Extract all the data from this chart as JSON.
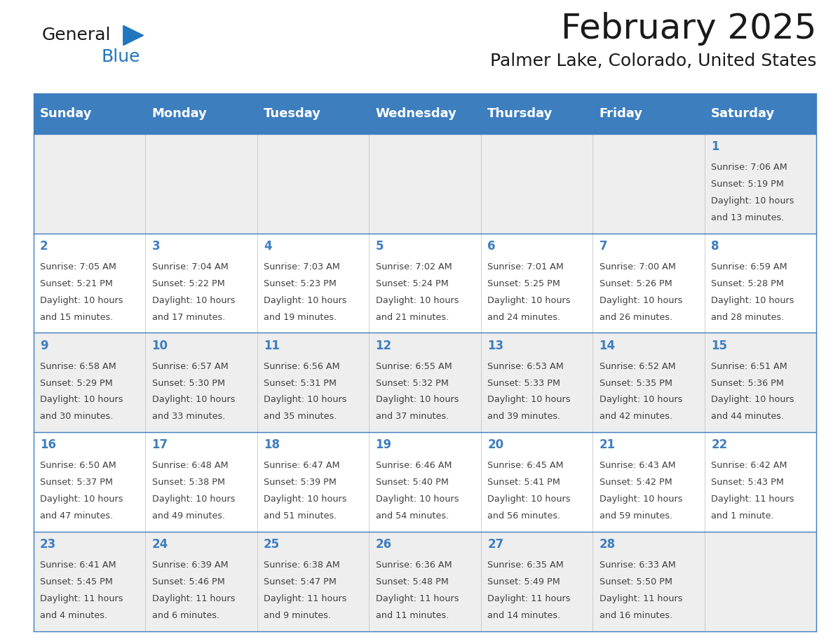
{
  "title": "February 2025",
  "subtitle": "Palmer Lake, Colorado, United States",
  "days_of_week": [
    "Sunday",
    "Monday",
    "Tuesday",
    "Wednesday",
    "Thursday",
    "Friday",
    "Saturday"
  ],
  "header_bg": "#3d7ebf",
  "header_text": "#ffffff",
  "row1_bg": "#eeeeee",
  "row2_bg": "#ffffff",
  "border_color": "#3d7ebf",
  "day_num_color": "#3d7ebf",
  "text_color": "#404040",
  "title_color": "#1a1a1a",
  "calendar_data": [
    [
      null,
      null,
      null,
      null,
      null,
      null,
      {
        "day": 1,
        "sunrise": "7:06 AM",
        "sunset": "5:19 PM",
        "daylight": "10 hours and 13 minutes."
      }
    ],
    [
      {
        "day": 2,
        "sunrise": "7:05 AM",
        "sunset": "5:21 PM",
        "daylight": "10 hours and 15 minutes."
      },
      {
        "day": 3,
        "sunrise": "7:04 AM",
        "sunset": "5:22 PM",
        "daylight": "10 hours and 17 minutes."
      },
      {
        "day": 4,
        "sunrise": "7:03 AM",
        "sunset": "5:23 PM",
        "daylight": "10 hours and 19 minutes."
      },
      {
        "day": 5,
        "sunrise": "7:02 AM",
        "sunset": "5:24 PM",
        "daylight": "10 hours and 21 minutes."
      },
      {
        "day": 6,
        "sunrise": "7:01 AM",
        "sunset": "5:25 PM",
        "daylight": "10 hours and 24 minutes."
      },
      {
        "day": 7,
        "sunrise": "7:00 AM",
        "sunset": "5:26 PM",
        "daylight": "10 hours and 26 minutes."
      },
      {
        "day": 8,
        "sunrise": "6:59 AM",
        "sunset": "5:28 PM",
        "daylight": "10 hours and 28 minutes."
      }
    ],
    [
      {
        "day": 9,
        "sunrise": "6:58 AM",
        "sunset": "5:29 PM",
        "daylight": "10 hours and 30 minutes."
      },
      {
        "day": 10,
        "sunrise": "6:57 AM",
        "sunset": "5:30 PM",
        "daylight": "10 hours and 33 minutes."
      },
      {
        "day": 11,
        "sunrise": "6:56 AM",
        "sunset": "5:31 PM",
        "daylight": "10 hours and 35 minutes."
      },
      {
        "day": 12,
        "sunrise": "6:55 AM",
        "sunset": "5:32 PM",
        "daylight": "10 hours and 37 minutes."
      },
      {
        "day": 13,
        "sunrise": "6:53 AM",
        "sunset": "5:33 PM",
        "daylight": "10 hours and 39 minutes."
      },
      {
        "day": 14,
        "sunrise": "6:52 AM",
        "sunset": "5:35 PM",
        "daylight": "10 hours and 42 minutes."
      },
      {
        "day": 15,
        "sunrise": "6:51 AM",
        "sunset": "5:36 PM",
        "daylight": "10 hours and 44 minutes."
      }
    ],
    [
      {
        "day": 16,
        "sunrise": "6:50 AM",
        "sunset": "5:37 PM",
        "daylight": "10 hours and 47 minutes."
      },
      {
        "day": 17,
        "sunrise": "6:48 AM",
        "sunset": "5:38 PM",
        "daylight": "10 hours and 49 minutes."
      },
      {
        "day": 18,
        "sunrise": "6:47 AM",
        "sunset": "5:39 PM",
        "daylight": "10 hours and 51 minutes."
      },
      {
        "day": 19,
        "sunrise": "6:46 AM",
        "sunset": "5:40 PM",
        "daylight": "10 hours and 54 minutes."
      },
      {
        "day": 20,
        "sunrise": "6:45 AM",
        "sunset": "5:41 PM",
        "daylight": "10 hours and 56 minutes."
      },
      {
        "day": 21,
        "sunrise": "6:43 AM",
        "sunset": "5:42 PM",
        "daylight": "10 hours and 59 minutes."
      },
      {
        "day": 22,
        "sunrise": "6:42 AM",
        "sunset": "5:43 PM",
        "daylight": "11 hours and 1 minute."
      }
    ],
    [
      {
        "day": 23,
        "sunrise": "6:41 AM",
        "sunset": "5:45 PM",
        "daylight": "11 hours and 4 minutes."
      },
      {
        "day": 24,
        "sunrise": "6:39 AM",
        "sunset": "5:46 PM",
        "daylight": "11 hours and 6 minutes."
      },
      {
        "day": 25,
        "sunrise": "6:38 AM",
        "sunset": "5:47 PM",
        "daylight": "11 hours and 9 minutes."
      },
      {
        "day": 26,
        "sunrise": "6:36 AM",
        "sunset": "5:48 PM",
        "daylight": "11 hours and 11 minutes."
      },
      {
        "day": 27,
        "sunrise": "6:35 AM",
        "sunset": "5:49 PM",
        "daylight": "11 hours and 14 minutes."
      },
      {
        "day": 28,
        "sunrise": "6:33 AM",
        "sunset": "5:50 PM",
        "daylight": "11 hours and 16 minutes."
      },
      null
    ]
  ],
  "logo_text_general": "General",
  "logo_text_blue": "Blue",
  "logo_color_general": "#1a1a1a",
  "logo_color_blue": "#2176bd",
  "logo_triangle_color": "#2176bd"
}
